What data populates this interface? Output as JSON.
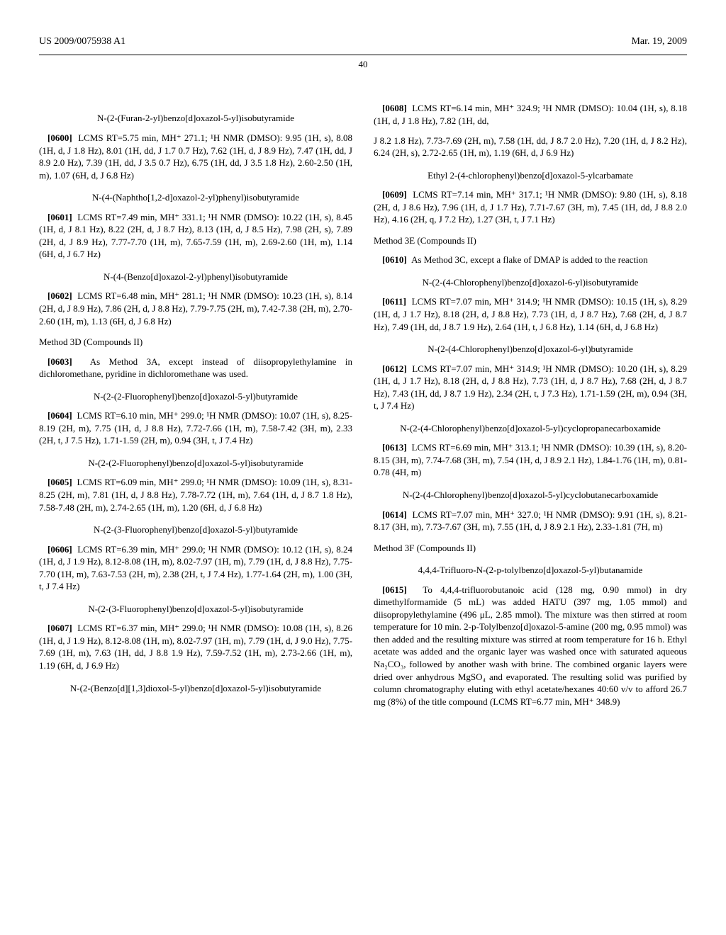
{
  "header": {
    "pub_number": "US 2009/0075938 A1",
    "pub_date": "Mar. 19, 2009",
    "page_number": "40"
  },
  "left": {
    "c1": {
      "title": "N-(2-(Furan-2-yl)benzo[d]oxazol-5-yl)isobutyramide",
      "num": "[0600]",
      "text": "LCMS RT=5.75 min, MH⁺ 271.1; ¹H NMR (DMSO): 9.95 (1H, s), 8.08 (1H, d, J 1.8 Hz), 8.01 (1H, dd, J 1.7 0.7 Hz), 7.62 (1H, d, J 8.9 Hz), 7.47 (1H, dd, J 8.9 2.0 Hz), 7.39 (1H, dd, J 3.5 0.7 Hz), 6.75 (1H, dd, J 3.5 1.8 Hz), 2.60-2.50 (1H, m), 1.07 (6H, d, J 6.8 Hz)"
    },
    "c2": {
      "title": "N-(4-(Naphtho[1,2-d]oxazol-2-yl)phenyl)isobutyramide",
      "num": "[0601]",
      "text": "LCMS RT=7.49 min, MH⁺ 331.1; ¹H NMR (DMSO): 10.22 (1H, s), 8.45 (1H, d, J 8.1 Hz), 8.22 (2H, d, J 8.7 Hz), 8.13 (1H, d, J 8.5 Hz), 7.98 (2H, s), 7.89 (2H, d, J 8.9 Hz), 7.77-7.70 (1H, m), 7.65-7.59 (1H, m), 2.69-2.60 (1H, m), 1.14 (6H, d, J 6.7 Hz)"
    },
    "c3": {
      "title": "N-(4-(Benzo[d]oxazol-2-yl)phenyl)isobutyramide",
      "num": "[0602]",
      "text": "LCMS RT=6.48 min, MH⁺ 281.1; ¹H NMR (DMSO): 10.23 (1H, s), 8.14 (2H, d, J 8.9 Hz), 7.86 (2H, d, J 8.8 Hz), 7.79-7.75 (2H, m), 7.42-7.38 (2H, m), 2.70-2.60 (1H, m), 1.13 (6H, d, J 6.8 Hz)"
    },
    "method3d": {
      "heading": "Method 3D (Compounds II)",
      "num": "[0603]",
      "text": "As Method 3A, except instead of diisopropylethylamine in dichloromethane, pyridine in dichloromethane was used."
    },
    "c4": {
      "title": "N-(2-(2-Fluorophenyl)benzo[d]oxazol-5-yl)butyramide",
      "num": "[0604]",
      "text": "LCMS RT=6.10 min, MH⁺ 299.0; ¹H NMR (DMSO): 10.07 (1H, s), 8.25-8.19 (2H, m), 7.75 (1H, d, J 8.8 Hz), 7.72-7.66 (1H, m), 7.58-7.42 (3H, m), 2.33 (2H, t, J 7.5 Hz), 1.71-1.59 (2H, m), 0.94 (3H, t, J 7.4 Hz)"
    },
    "c5": {
      "title": "N-(2-(2-Fluorophenyl)benzo[d]oxazol-5-yl)isobutyramide",
      "num": "[0605]",
      "text": "LCMS RT=6.09 min, MH⁺ 299.0; ¹H NMR (DMSO): 10.09 (1H, s), 8.31-8.25 (2H, m), 7.81 (1H, d, J 8.8 Hz), 7.78-7.72 (1H, m), 7.64 (1H, d, J 8.7 1.8 Hz), 7.58-7.48 (2H, m), 2.74-2.65 (1H, m), 1.20 (6H, d, J 6.8 Hz)"
    },
    "c6": {
      "title": "N-(2-(3-Fluorophenyl)benzo[d]oxazol-5-yl)butyramide",
      "num": "[0606]",
      "text": "LCMS RT=6.39 min, MH⁺ 299.0; ¹H NMR (DMSO): 10.12 (1H, s), 8.24 (1H, d, J 1.9 Hz), 8.12-8.08 (1H, m), 8.02-7.97 (1H, m), 7.79 (1H, d, J 8.8 Hz), 7.75-7.70 (1H, m), 7.63-7.53 (2H, m), 2.38 (2H, t, J 7.4 Hz), 1.77-1.64 (2H, m), 1.00 (3H, t, J 7.4 Hz)"
    },
    "c7": {
      "title": "N-(2-(3-Fluorophenyl)benzo[d]oxazol-5-yl)isobutyramide",
      "num": "[0607]",
      "text": "LCMS RT=6.37 min, MH⁺ 299.0; ¹H NMR (DMSO): 10.08 (1H, s), 8.26 (1H, d, J 1.9 Hz), 8.12-8.08 (1H, m), 8.02-7.97 (1H, m), 7.79 (1H, d, J 9.0 Hz), 7.75-7.69 (1H, m), 7.63 (1H, dd, J 8.8 1.9 Hz), 7.59-7.52 (1H, m), 2.73-2.66 (1H, m), 1.19 (6H, d, J 6.9 Hz)"
    },
    "c8": {
      "title": "N-(2-(Benzo[d][1,3]dioxol-5-yl)benzo[d]oxazol-5-yl)isobutyramide",
      "num": "[0608]",
      "text": "LCMS RT=6.14 min, MH⁺ 324.9; ¹H NMR (DMSO): 10.04 (1H, s), 8.18 (1H, d, J 1.8 Hz), 7.82 (1H, dd,"
    }
  },
  "right": {
    "cont": "J 8.2 1.8 Hz), 7.73-7.69 (2H, m), 7.58 (1H, dd, J 8.7 2.0 Hz), 7.20 (1H, d, J 8.2 Hz), 6.24 (2H, s), 2.72-2.65 (1H, m), 1.19 (6H, d, J 6.9 Hz)",
    "c9": {
      "title": "Ethyl 2-(4-chlorophenyl)benzo[d]oxazol-5-ylcarbamate",
      "num": "[0609]",
      "text": "LCMS RT=7.14 min, MH⁺ 317.1; ¹H NMR (DMSO): 9.80 (1H, s), 8.18 (2H, d, J 8.6 Hz), 7.96 (1H, d, J 1.7 Hz), 7.71-7.67 (3H, m), 7.45 (1H, dd, J 8.8 2.0 Hz), 4.16 (2H, q, J 7.2 Hz), 1.27 (3H, t, J 7.1 Hz)"
    },
    "method3e": {
      "heading": "Method 3E (Compounds II)",
      "num": "[0610]",
      "text": "As Method 3C, except a flake of DMAP is added to the reaction"
    },
    "c10": {
      "title": "N-(2-(4-Chlorophenyl)benzo[d]oxazol-6-yl)isobutyramide",
      "num": "[0611]",
      "text": "LCMS RT=7.07 min, MH⁺ 314.9; ¹H NMR (DMSO): 10.15 (1H, s), 8.29 (1H, d, J 1.7 Hz), 8.18 (2H, d, J 8.8 Hz), 7.73 (1H, d, J 8.7 Hz), 7.68 (2H, d, J 8.7 Hz), 7.49 (1H, dd, J 8.7 1.9 Hz), 2.64 (1H, t, J 6.8 Hz), 1.14 (6H, d, J 6.8 Hz)"
    },
    "c11": {
      "title": "N-(2-(4-Chlorophenyl)benzo[d]oxazol-6-yl)butyramide",
      "num": "[0612]",
      "text": "LCMS RT=7.07 min, MH⁺ 314.9; ¹H NMR (DMSO): 10.20 (1H, s), 8.29 (1H, d, J 1.7 Hz), 8.18 (2H, d, J 8.8 Hz), 7.73 (1H, d, J 8.7 Hz), 7.68 (2H, d, J 8.7 Hz), 7.43 (1H, dd, J 8.7 1.9 Hz), 2.34 (2H, t, J 7.3 Hz), 1.71-1.59 (2H, m), 0.94 (3H, t, J 7.4 Hz)"
    },
    "c12": {
      "title": "N-(2-(4-Chlorophenyl)benzo[d]oxazol-5-yl)cyclopropanecarboxamide",
      "num": "[0613]",
      "text": "LCMS RT=6.69 min, MH⁺ 313.1; ¹H NMR (DMSO): 10.39 (1H, s), 8.20-8.15 (3H, m), 7.74-7.68 (3H, m), 7.54 (1H, d, J 8.9 2.1 Hz), 1.84-1.76 (1H, m), 0.81-0.78 (4H, m)"
    },
    "c13": {
      "title": "N-(2-(4-Chlorophenyl)benzo[d]oxazol-5-yl)cyclobutanecarboxamide",
      "num": "[0614]",
      "text": "LCMS RT=7.07 min, MH⁺ 327.0; ¹H NMR (DMSO): 9.91 (1H, s), 8.21-8.17 (3H, m), 7.73-7.67 (3H, m), 7.55 (1H, d, J 8.9 2.1 Hz), 2.33-1.81 (7H, m)"
    },
    "method3f": {
      "heading": "Method 3F (Compounds II)",
      "title": "4,4,4-Trifluoro-N-(2-p-tolylbenzo[d]oxazol-5-yl)butanamide",
      "num": "[0615]",
      "text": "To 4,4,4-trifluorobutanoic acid (128 mg, 0.90 mmol) in dry dimethylformamide (5 mL) was added HATU (397 mg, 1.05 mmol) and diisopropylethylamine (496 μL, 2.85 mmol). The mixture was then stirred at room temperature for 10 min. 2-p-Tolylbenzo[d]oxazol-5-amine (200 mg, 0.95 mmol) was then added and the resulting mixture was stirred at room temperature for 16 h. Ethyl acetate was added and the organic layer was washed once with saturated aqueous Na₂CO₃, followed by another wash with brine. The combined organic layers were dried over anhydrous MgSO₄ and evaporated. The resulting solid was purified by column chromatography eluting with ethyl acetate/hexanes 40:60 v/v to afford 26.7 mg (8%) of the title compound (LCMS RT=6.77 min, MH⁺ 348.9)"
    }
  }
}
